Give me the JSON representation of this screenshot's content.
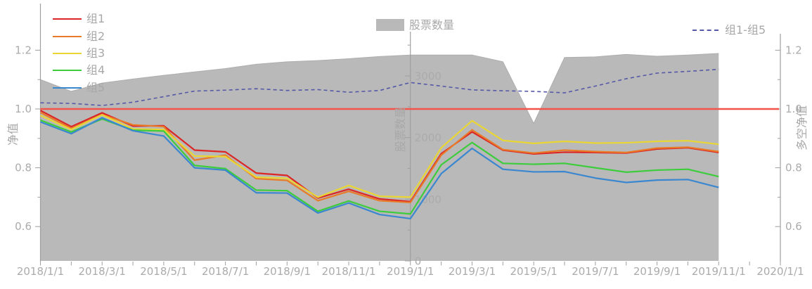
{
  "axes": {
    "left": {
      "title": "净值",
      "tick_labels": [
        "1.2",
        "1.0",
        "0.8",
        "0.6"
      ],
      "tick_values": [
        1.2,
        1.0,
        0.8,
        0.6
      ],
      "minor_values": [
        1.1,
        0.9,
        0.7
      ]
    },
    "middle": {
      "title": "股票数量",
      "tick_labels": [
        "3000",
        "2000",
        "1000",
        "0"
      ],
      "tick_values": [
        3000,
        2000,
        1000,
        0
      ],
      "minor_values": [
        3500,
        2500,
        1500,
        500
      ]
    },
    "right": {
      "title": "多空净值",
      "tick_labels": [
        "1.2",
        "1.0",
        "0.8",
        "0.6"
      ],
      "tick_values": [
        1.2,
        1.0,
        0.8,
        0.6
      ],
      "minor_values": [
        1.1,
        0.9,
        0.7
      ]
    },
    "x": {
      "labels": [
        "2018/1/1",
        "2018/3/1",
        "2018/5/1",
        "2018/7/1",
        "2018/9/1",
        "2018/11/1",
        "2019/1/1",
        "2019/3/1",
        "2019/5/1",
        "2019/7/1",
        "2019/9/1",
        "2019/11/1",
        "2020/1/1"
      ]
    }
  },
  "chart_data": {
    "type": "line",
    "title": "",
    "grid": false,
    "legend_position": "top",
    "x": [
      "2018/1/1",
      "2018/2/1",
      "2018/3/1",
      "2018/4/1",
      "2018/5/1",
      "2018/6/1",
      "2018/7/1",
      "2018/8/1",
      "2018/9/1",
      "2018/10/1",
      "2018/11/1",
      "2018/12/1",
      "2019/1/1",
      "2019/2/1",
      "2019/3/1",
      "2019/4/1",
      "2019/5/1",
      "2019/6/1",
      "2019/7/1",
      "2019/8/1",
      "2019/9/1",
      "2019/10/1",
      "2019/11/1"
    ],
    "x_range": [
      "2018/1/1",
      "2020/1/1"
    ],
    "left_ylim": [
      0.55,
      1.28
    ],
    "right_ylim": [
      0.55,
      1.28
    ],
    "count_ylim": [
      0,
      4000
    ],
    "reference_line": {
      "value": 1.0,
      "axis": "left",
      "color": "#f0544a"
    },
    "series": [
      {
        "name": "组1",
        "type": "line",
        "yaxis": "left",
        "color": "#dc2626",
        "values": [
          0.995,
          0.94,
          0.987,
          0.942,
          0.943,
          0.86,
          0.854,
          0.782,
          0.774,
          0.697,
          0.727,
          0.694,
          0.685,
          0.848,
          0.922,
          0.86,
          0.847,
          0.853,
          0.852,
          0.85,
          0.864,
          0.868,
          0.852
        ]
      },
      {
        "name": "组2",
        "type": "line",
        "yaxis": "left",
        "color": "#e87a28",
        "values": [
          0.988,
          0.934,
          0.981,
          0.946,
          0.94,
          0.826,
          0.843,
          0.763,
          0.757,
          0.688,
          0.72,
          0.688,
          0.682,
          0.843,
          0.929,
          0.862,
          0.85,
          0.86,
          0.855,
          0.852,
          0.867,
          0.87,
          0.855
        ]
      },
      {
        "name": "组3",
        "type": "line",
        "yaxis": "left",
        "color": "#e9d634",
        "values": [
          0.978,
          0.93,
          0.98,
          0.932,
          0.93,
          0.84,
          0.838,
          0.768,
          0.764,
          0.7,
          0.74,
          0.703,
          0.7,
          0.868,
          0.96,
          0.893,
          0.883,
          0.89,
          0.884,
          0.885,
          0.89,
          0.892,
          0.88
        ]
      },
      {
        "name": "组4",
        "type": "line",
        "yaxis": "left",
        "color": "#3ccc3c",
        "values": [
          0.962,
          0.922,
          0.966,
          0.928,
          0.925,
          0.808,
          0.797,
          0.724,
          0.722,
          0.652,
          0.687,
          0.652,
          0.643,
          0.81,
          0.886,
          0.815,
          0.812,
          0.815,
          0.8,
          0.785,
          0.792,
          0.795,
          0.77
        ]
      },
      {
        "name": "组5",
        "type": "line",
        "yaxis": "left",
        "color": "#3a87d0",
        "values": [
          0.956,
          0.916,
          0.97,
          0.926,
          0.908,
          0.8,
          0.792,
          0.715,
          0.714,
          0.646,
          0.68,
          0.641,
          0.627,
          0.78,
          0.866,
          0.795,
          0.786,
          0.787,
          0.765,
          0.75,
          0.758,
          0.76,
          0.733
        ]
      },
      {
        "name": "股票数量",
        "type": "area",
        "yaxis": "count",
        "color": "#b9b9b9",
        "values": [
          2940,
          2750,
          2885,
          2950,
          3010,
          3065,
          3120,
          3190,
          3230,
          3250,
          3280,
          3315,
          3340,
          3340,
          3340,
          3230,
          2230,
          3300,
          3310,
          3350,
          3320,
          3340,
          3365
        ]
      },
      {
        "name": "组1-组5",
        "type": "dashed-line",
        "yaxis": "right",
        "color": "#5559a6",
        "values": [
          1.021,
          1.019,
          1.012,
          1.023,
          1.042,
          1.061,
          1.064,
          1.069,
          1.063,
          1.066,
          1.057,
          1.063,
          1.09,
          1.078,
          1.065,
          1.062,
          1.06,
          1.055,
          1.078,
          1.103,
          1.122,
          1.128,
          1.135
        ]
      }
    ]
  },
  "style": {
    "axis_color": "#9f9f9f",
    "text_color": "#ababab",
    "area_edge_color": "#aeaeae",
    "background": "#ffffff"
  }
}
